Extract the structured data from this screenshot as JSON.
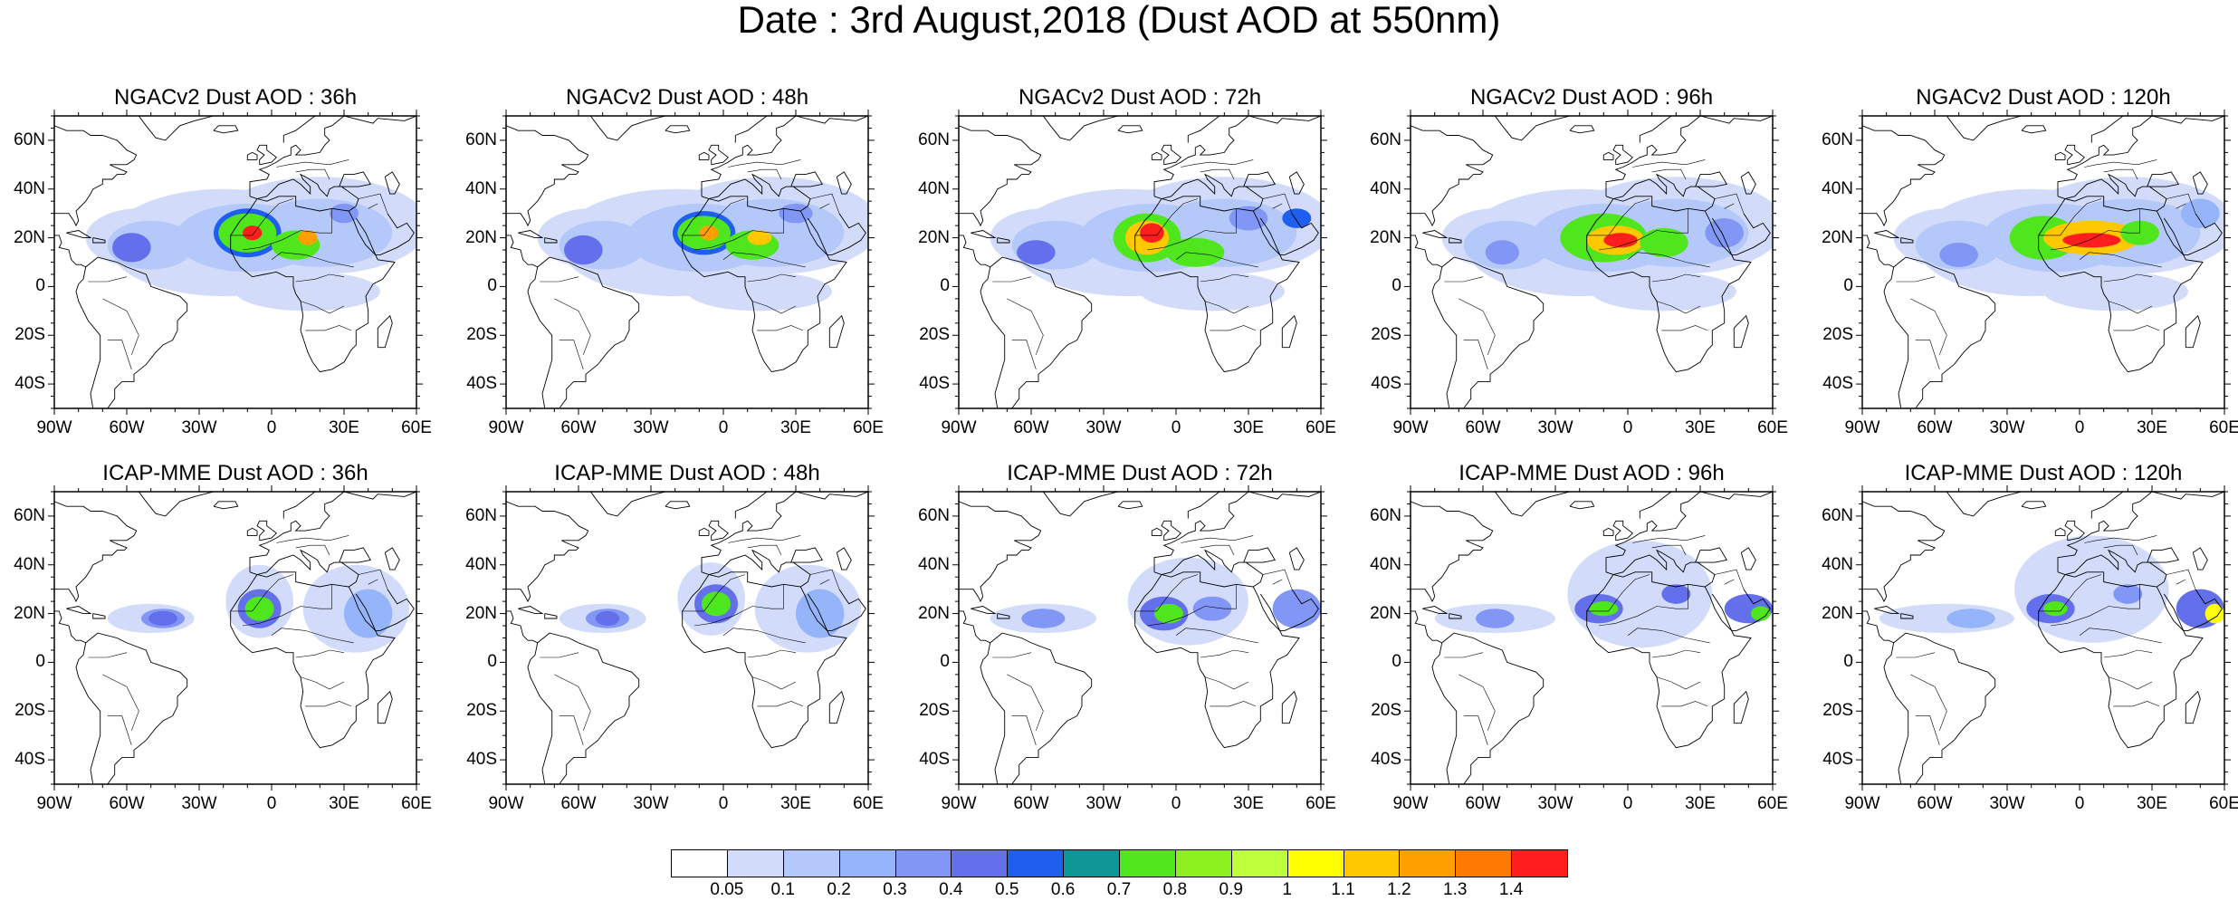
{
  "title": "Date : 3rd August,2018 (Dust AOD at 550nm)",
  "lat_labels": [
    "60N",
    "40N",
    "20N",
    "0",
    "20S",
    "40S"
  ],
  "lon_labels": [
    "90W",
    "60W",
    "30W",
    "0",
    "30E",
    "60E"
  ],
  "rows": [
    {
      "model": "NGACv2",
      "panels": [
        {
          "title": "NGACv2 Dust AOD : 36h",
          "lead_hours": 36
        },
        {
          "title": "NGACv2 Dust AOD : 48h",
          "lead_hours": 48
        },
        {
          "title": "NGACv2 Dust AOD : 72h",
          "lead_hours": 72
        },
        {
          "title": "NGACv2 Dust AOD : 96h",
          "lead_hours": 96
        },
        {
          "title": "NGACv2 Dust AOD : 120h",
          "lead_hours": 120
        }
      ]
    },
    {
      "model": "ICAP-MME",
      "panels": [
        {
          "title": "ICAP-MME Dust AOD : 36h",
          "lead_hours": 36
        },
        {
          "title": "ICAP-MME Dust AOD : 48h",
          "lead_hours": 48
        },
        {
          "title": "ICAP-MME Dust AOD : 72h",
          "lead_hours": 72
        },
        {
          "title": "ICAP-MME Dust AOD : 96h",
          "lead_hours": 96
        },
        {
          "title": "ICAP-MME Dust AOD : 120h",
          "lead_hours": 120
        }
      ]
    }
  ],
  "colorbar": {
    "labels": [
      "0.05",
      "0.1",
      "0.2",
      "0.3",
      "0.4",
      "0.5",
      "0.6",
      "0.7",
      "0.8",
      "0.9",
      "1",
      "1.1",
      "1.2",
      "1.3",
      "1.4"
    ],
    "colors": [
      "#ffffff",
      "#d2dcfa",
      "#b4c8fa",
      "#96b4fa",
      "#8296f5",
      "#6470eb",
      "#1e5ff0",
      "#0f9696",
      "#50e61e",
      "#8cf01e",
      "#beff3c",
      "#ffff00",
      "#ffc800",
      "#ffa000",
      "#ff7800",
      "#ff1e1e"
    ]
  }
}
